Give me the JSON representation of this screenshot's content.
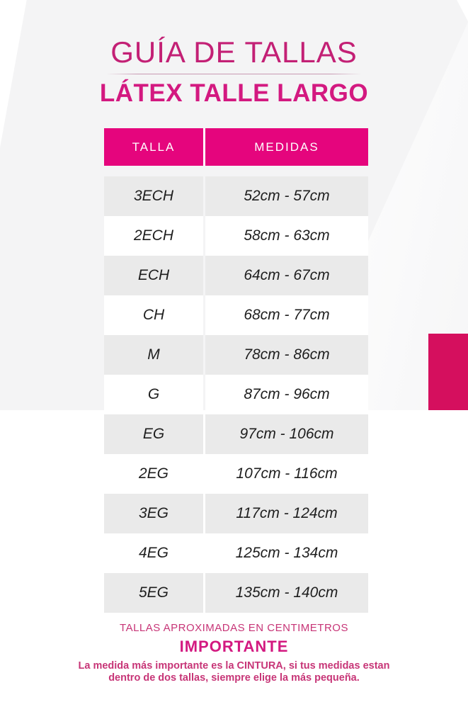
{
  "page": {
    "title": "GUÍA DE TALLAS",
    "subtitle": "LÁTEX TALLE LARGO"
  },
  "table": {
    "headers": {
      "talla": "TALLA",
      "medidas": "MEDIDAS"
    },
    "rows": [
      {
        "talla": "3ECH",
        "medidas": "52cm - 57cm"
      },
      {
        "talla": "2ECH",
        "medidas": "58cm - 63cm"
      },
      {
        "talla": "ECH",
        "medidas": "64cm - 67cm"
      },
      {
        "talla": "CH",
        "medidas": "68cm - 77cm"
      },
      {
        "talla": "M",
        "medidas": "78cm - 86cm"
      },
      {
        "talla": "G",
        "medidas": "87cm - 96cm"
      },
      {
        "talla": "EG",
        "medidas": "97cm - 106cm"
      },
      {
        "talla": "2EG",
        "medidas": "107cm - 116cm"
      },
      {
        "talla": "3EG",
        "medidas": "117cm - 124cm"
      },
      {
        "talla": "4EG",
        "medidas": "125cm - 134cm"
      },
      {
        "talla": "5EG",
        "medidas": "135cm - 140cm"
      }
    ]
  },
  "footer": {
    "note": "TALLAS APROXIMADAS EN CENTIMETROS",
    "important_label": "IMPORTANTE",
    "disclaimer_line1": "La medida más importante es la CINTURA, si tus medidas estan",
    "disclaimer_line2": "dentro de dos tallas, siempre elige la más pequeña."
  },
  "colors": {
    "header_pink": "#E5057D",
    "accent_rect": "#D50F5E",
    "title_pink": "#C32075",
    "subtitle_pink": "#D31980",
    "footer_pink": "#C73577",
    "row_gray": "#EAEAEA",
    "bg_gray": "#F4F4F5"
  }
}
